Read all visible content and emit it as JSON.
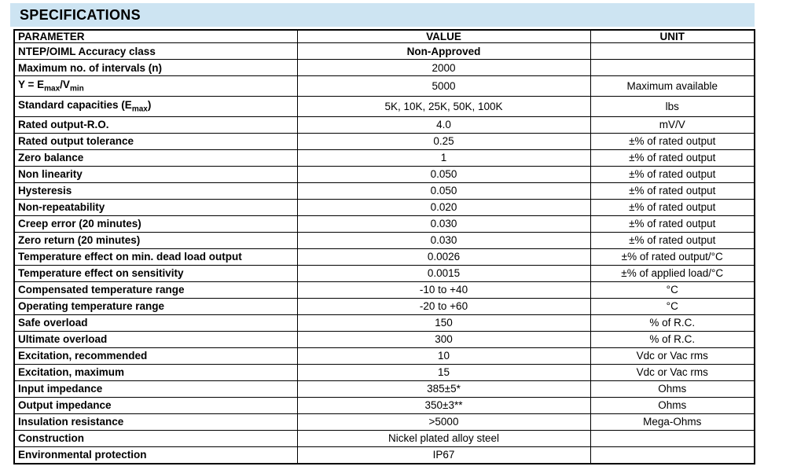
{
  "title": "SPECIFICATIONS",
  "colors": {
    "title_bar_bg": "#cde4f2",
    "border": "#000000",
    "text": "#000000",
    "page_bg": "#ffffff"
  },
  "table": {
    "headers": [
      "PARAMETER",
      "VALUE",
      "UNIT"
    ],
    "rows": [
      {
        "parameter": "NTEP/OIML Accuracy class",
        "value": "Non-Approved",
        "unit": "",
        "value_bold": true
      },
      {
        "parameter": "Maximum no. of intervals (n)",
        "value": "2000",
        "unit": ""
      },
      {
        "parameter": "Y = E_{max}/V_{min}",
        "value": "5000",
        "unit": "Maximum available"
      },
      {
        "parameter": "Standard capacities (E_{max})",
        "value": "5K, 10K, 25K, 50K, 100K",
        "unit": "lbs"
      },
      {
        "parameter": "Rated output-R.O.",
        "value": "4.0",
        "unit": "mV/V"
      },
      {
        "parameter": "Rated output tolerance",
        "value": "0.25",
        "unit": "±% of rated output"
      },
      {
        "parameter": "Zero balance",
        "value": "1",
        "unit": "±% of rated output"
      },
      {
        "parameter": "Non linearity",
        "value": "0.050",
        "unit": "±% of rated output"
      },
      {
        "parameter": "Hysteresis",
        "value": "0.050",
        "unit": "±% of rated output"
      },
      {
        "parameter": "Non-repeatability",
        "value": "0.020",
        "unit": "±% of rated output"
      },
      {
        "parameter": "Creep error (20 minutes)",
        "value": "0.030",
        "unit": "±% of rated output"
      },
      {
        "parameter": "Zero return (20 minutes)",
        "value": "0.030",
        "unit": "±% of rated output"
      },
      {
        "parameter": "Temperature effect on min. dead load output",
        "value": "0.0026",
        "unit": "±% of rated output/°C"
      },
      {
        "parameter": "Temperature effect on sensitivity",
        "value": "0.0015",
        "unit": "±% of applied load/°C"
      },
      {
        "parameter": "Compensated temperature range",
        "value": "-10 to +40",
        "unit": "°C"
      },
      {
        "parameter": "Operating temperature range",
        "value": "-20 to +60",
        "unit": "°C"
      },
      {
        "parameter": "Safe overload",
        "value": "150",
        "unit": "% of R.C."
      },
      {
        "parameter": "Ultimate overload",
        "value": "300",
        "unit": "% of R.C."
      },
      {
        "parameter": "Excitation, recommended",
        "value": "10",
        "unit": "Vdc or Vac rms"
      },
      {
        "parameter": "Excitation, maximum",
        "value": "15",
        "unit": "Vdc or Vac rms"
      },
      {
        "parameter": "Input impedance",
        "value": "385±5*",
        "unit": "Ohms"
      },
      {
        "parameter": "Output impedance",
        "value": "350±3**",
        "unit": "Ohms"
      },
      {
        "parameter": "Insulation resistance",
        "value": ">5000",
        "unit": "Mega-Ohms"
      },
      {
        "parameter": "Construction",
        "value": "Nickel plated alloy steel",
        "unit": ""
      },
      {
        "parameter": "Environmental protection",
        "value": "IP67",
        "unit": ""
      }
    ]
  }
}
